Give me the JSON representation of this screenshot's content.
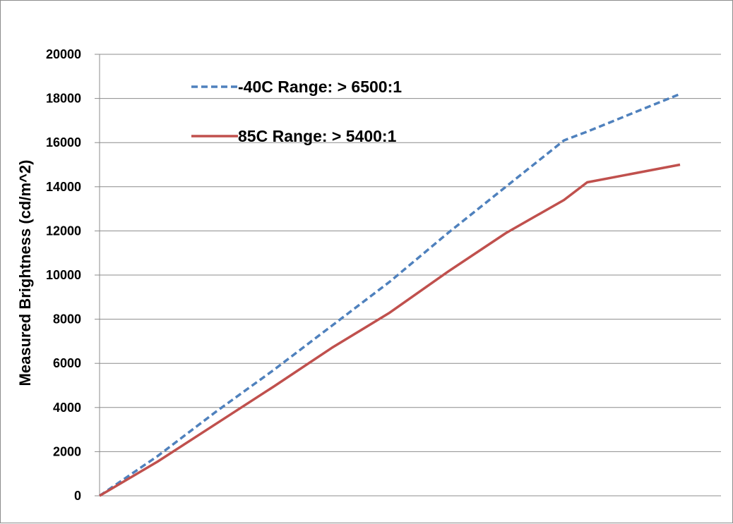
{
  "chart_data": {
    "type": "line",
    "title": "",
    "xlabel": "",
    "ylabel": "Measured Brightness (cd/m^2)",
    "ylim": [
      0,
      20000
    ],
    "yticks": [
      0,
      2000,
      4000,
      6000,
      8000,
      10000,
      12000,
      14000,
      16000,
      18000,
      20000
    ],
    "grid": true,
    "legend_position": "top-left",
    "x": [
      0,
      1,
      2,
      3,
      4,
      5,
      6,
      7,
      8,
      9,
      10
    ],
    "series": [
      {
        "name": "-40C Range: > 6500:1",
        "color": "#4f81bd",
        "style": "dashed",
        "values": [
          0,
          1800,
          3800,
          5700,
          7700,
          9700,
          11900,
          14000,
          16100,
          16500,
          18200
        ]
      },
      {
        "name": "85C Range: > 5400:1",
        "color": "#c0504d",
        "style": "solid",
        "values": [
          0,
          1550,
          3250,
          4950,
          6700,
          8300,
          10150,
          11900,
          13400,
          14200,
          15000
        ]
      }
    ],
    "x_positions": [
      0,
      0.1,
      0.2,
      0.3,
      0.4,
      0.5,
      0.6,
      0.7,
      0.8,
      0.84,
      1.0
    ]
  }
}
